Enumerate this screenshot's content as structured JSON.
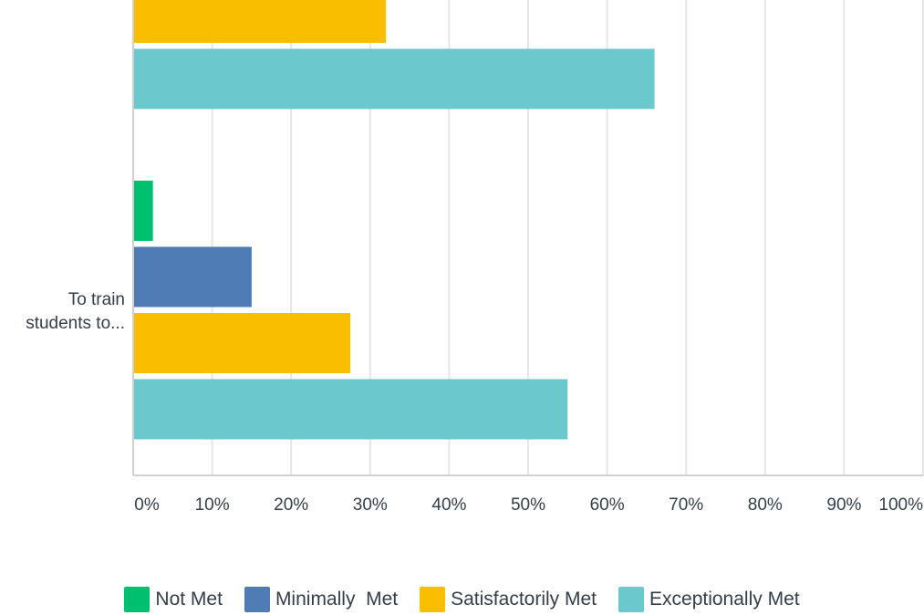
{
  "chart_data": {
    "type": "bar",
    "orientation": "horizontal",
    "xlim": [
      0,
      100
    ],
    "x_ticks": [
      "0%",
      "10%",
      "20%",
      "30%",
      "40%",
      "50%",
      "60%",
      "70%",
      "80%",
      "90%",
      "100%"
    ],
    "grid": true,
    "legend_position": "bottom",
    "categories": [
      "",
      "To train students to..."
    ],
    "series": [
      {
        "name": "Not Met",
        "color": "#00bf6f",
        "values": [
          null,
          2.5
        ]
      },
      {
        "name": "Minimally  Met",
        "color": "#507cb6",
        "values": [
          null,
          15
        ]
      },
      {
        "name": "Satisfactorily Met",
        "color": "#f9be00",
        "values": [
          32,
          27.5
        ]
      },
      {
        "name": "Exceptionally Met",
        "color": "#6bc8cd",
        "values": [
          66,
          55
        ]
      }
    ]
  }
}
